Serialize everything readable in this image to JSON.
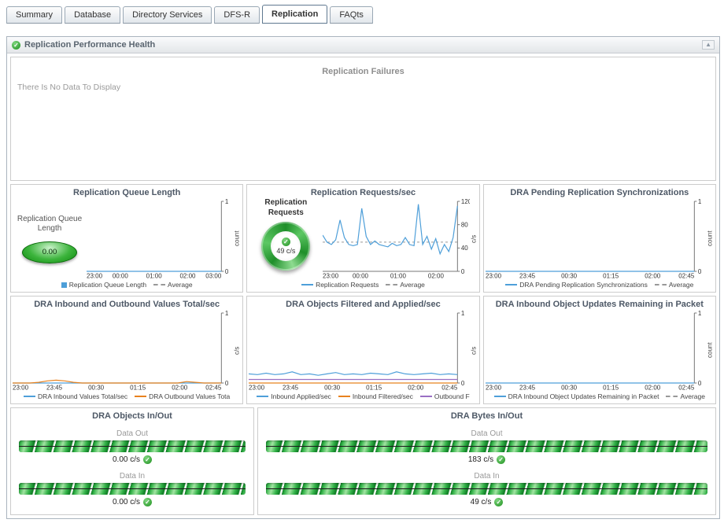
{
  "tabs": [
    {
      "label": "Summary"
    },
    {
      "label": "Database"
    },
    {
      "label": "Directory Services"
    },
    {
      "label": "DFS-R"
    },
    {
      "label": "Replication"
    },
    {
      "label": "FAQts"
    }
  ],
  "active_tab": "Replication",
  "icons": {
    "check": "✓",
    "collapse": "▲"
  },
  "panel": {
    "title": "Replication Performance Health"
  },
  "failures": {
    "title": "Replication Failures",
    "empty_text": "There Is No Data To Display"
  },
  "gauges": {
    "queue": {
      "label": "Replication Queue Length",
      "value": "0.00"
    },
    "requests": {
      "label": "Replication Requests",
      "value": "49 c/s"
    }
  },
  "colors": {
    "line_blue": "#4e9fd9",
    "line_orange": "#e8821e",
    "line_purple": "#9a6fc4",
    "avg_gray": "#999999",
    "green": "#2ca52c"
  },
  "charts": [
    {
      "type": "line",
      "title": "Replication Queue Length",
      "ylabel": "count",
      "ylim": [
        0,
        1
      ],
      "y_ticks": [
        0,
        1
      ],
      "x_ticks": [
        "23:00",
        "00:00",
        "01:00",
        "02:00",
        "03:00"
      ],
      "avg": 0,
      "series": [
        {
          "name": "Replication Queue Length",
          "color": "#4e9fd9",
          "values": [
            0,
            0,
            0,
            0,
            0,
            0,
            0,
            0,
            0,
            0,
            0,
            0,
            0,
            0,
            0,
            0,
            0,
            0,
            0,
            0,
            0,
            0,
            0,
            0,
            0
          ]
        }
      ],
      "legend": [
        {
          "label": "Replication Queue Length",
          "color": "#4e9fd9",
          "marker": "box"
        },
        {
          "label": "Average",
          "color": "#999999",
          "dash": true
        }
      ]
    },
    {
      "type": "line",
      "title": "Replication Requests/sec",
      "ylabel": "c/s",
      "ylim": [
        0,
        120
      ],
      "y_ticks": [
        0,
        40,
        80,
        120
      ],
      "x_ticks": [
        "23:00",
        "00:00",
        "01:00",
        "02:00"
      ],
      "x_span": 0.84,
      "avg": 50,
      "series": [
        {
          "name": "Replication Requests",
          "color": "#4e9fd9",
          "values": [
            62,
            50,
            46,
            54,
            88,
            58,
            46,
            44,
            46,
            108,
            60,
            46,
            52,
            46,
            44,
            42,
            48,
            44,
            46,
            58,
            46,
            44,
            115,
            46,
            60,
            38,
            56,
            30,
            46,
            34,
            58,
            112
          ]
        }
      ],
      "legend": [
        {
          "label": "Replication Requests",
          "color": "#4e9fd9"
        },
        {
          "label": "Average",
          "color": "#999999",
          "dash": true
        }
      ]
    },
    {
      "type": "line",
      "title": "DRA Pending Replication Synchronizations",
      "ylabel": "count",
      "ylim": [
        0,
        1
      ],
      "y_ticks": [
        0,
        1
      ],
      "x_ticks": [
        "23:00",
        "23:45",
        "00:30",
        "01:15",
        "02:00",
        "02:45"
      ],
      "avg": 0,
      "series": [
        {
          "name": "DRA Pending Replication Synchronizations",
          "color": "#4e9fd9",
          "values": [
            0,
            0,
            0,
            0,
            0,
            0,
            0,
            0,
            0,
            0,
            0,
            0,
            0,
            0,
            0,
            0,
            0,
            0,
            0,
            0,
            0,
            0,
            0,
            0,
            0
          ]
        }
      ],
      "legend": [
        {
          "label": "DRA Pending Replication Synchronizations",
          "color": "#4e9fd9"
        },
        {
          "label": "Average",
          "color": "#999999",
          "dash": true
        }
      ]
    },
    {
      "type": "line",
      "title": "DRA Inbound and Outbound Values Total/sec",
      "ylabel": "c/s",
      "ylim": [
        0,
        1
      ],
      "y_ticks": [
        0,
        1
      ],
      "x_ticks": [
        "23:00",
        "23:45",
        "00:30",
        "01:15",
        "02:00",
        "02:45"
      ],
      "series": [
        {
          "name": "DRA Inbound Values Total/sec",
          "color": "#4e9fd9",
          "values": [
            0,
            0,
            0,
            0,
            0,
            0,
            0,
            0,
            0,
            0,
            0,
            0,
            0,
            0,
            0,
            0,
            0,
            0,
            0,
            0,
            0,
            0,
            0,
            0,
            0
          ]
        },
        {
          "name": "DRA Outbound Values Total/sec",
          "color": "#e8821e",
          "values": [
            0,
            0,
            0,
            0.01,
            0.03,
            0.04,
            0.03,
            0.01,
            0,
            0,
            0,
            0,
            0,
            0,
            0,
            0,
            0,
            0,
            0,
            0,
            0.02,
            0.01,
            0,
            0,
            0
          ]
        }
      ],
      "legend": [
        {
          "label": "DRA Inbound Values Total/sec",
          "color": "#4e9fd9"
        },
        {
          "label": "DRA Outbound Values Tota",
          "color": "#e8821e"
        }
      ]
    },
    {
      "type": "line",
      "title": "DRA Objects Filtered and Applied/sec",
      "ylabel": "c/s",
      "ylim": [
        0,
        1
      ],
      "y_ticks": [
        0,
        1
      ],
      "x_ticks": [
        "23:00",
        "23:45",
        "00:30",
        "01:15",
        "02:00",
        "02:45"
      ],
      "series": [
        {
          "name": "Inbound Applied/sec",
          "color": "#4e9fd9",
          "values": [
            0.13,
            0.12,
            0.14,
            0.12,
            0.13,
            0.16,
            0.12,
            0.13,
            0.11,
            0.13,
            0.15,
            0.12,
            0.13,
            0.12,
            0.14,
            0.13,
            0.12,
            0.16,
            0.13,
            0.12,
            0.13,
            0.14,
            0.12,
            0.13,
            0.12
          ]
        },
        {
          "name": "Inbound Filtered/sec",
          "color": "#e8821e",
          "values": [
            0,
            0,
            0,
            0,
            0,
            0,
            0,
            0,
            0,
            0,
            0,
            0,
            0,
            0,
            0,
            0,
            0,
            0,
            0,
            0,
            0,
            0,
            0,
            0,
            0
          ]
        },
        {
          "name": "Outbound Filtered/sec",
          "color": "#9a6fc4",
          "values": [
            0.05,
            0.05,
            0.05,
            0.05,
            0.05,
            0.05,
            0.05,
            0.05,
            0.05,
            0.05,
            0.05,
            0.05,
            0.05,
            0.05,
            0.05,
            0.05,
            0.05,
            0.05,
            0.05,
            0.05,
            0.05,
            0.05,
            0.05,
            0.05,
            0.05
          ]
        }
      ],
      "legend": [
        {
          "label": "Inbound Applied/sec",
          "color": "#4e9fd9"
        },
        {
          "label": "Inbound Filtered/sec",
          "color": "#e8821e"
        },
        {
          "label": "Outbound F",
          "color": "#9a6fc4"
        }
      ]
    },
    {
      "type": "line",
      "title": "DRA Inbound Object Updates Remaining in Packet",
      "ylabel": "count",
      "ylim": [
        0,
        1
      ],
      "y_ticks": [
        0,
        1
      ],
      "x_ticks": [
        "23:00",
        "23:45",
        "00:30",
        "01:15",
        "02:00",
        "02:45"
      ],
      "avg": 0,
      "series": [
        {
          "name": "DRA Inbound Object Updates Remaining in Packet",
          "color": "#4e9fd9",
          "values": [
            0,
            0,
            0,
            0,
            0,
            0,
            0,
            0,
            0,
            0,
            0,
            0,
            0,
            0,
            0,
            0,
            0,
            0,
            0,
            0,
            0,
            0,
            0,
            0,
            0
          ]
        }
      ],
      "legend": [
        {
          "label": "DRA Inbound Object Updates Remaining in Packet",
          "color": "#4e9fd9"
        },
        {
          "label": "Average",
          "color": "#999999",
          "dash": true
        }
      ]
    }
  ],
  "flows": [
    {
      "title": "DRA Objects In/Out",
      "rows": [
        {
          "label": "Data Out",
          "value": "0.00 c/s"
        },
        {
          "label": "Data In",
          "value": "0.00 c/s"
        }
      ]
    },
    {
      "title": "DRA Bytes In/Out",
      "rows": [
        {
          "label": "Data Out",
          "value": "183 c/s"
        },
        {
          "label": "Data In",
          "value": "49 c/s"
        }
      ]
    }
  ]
}
